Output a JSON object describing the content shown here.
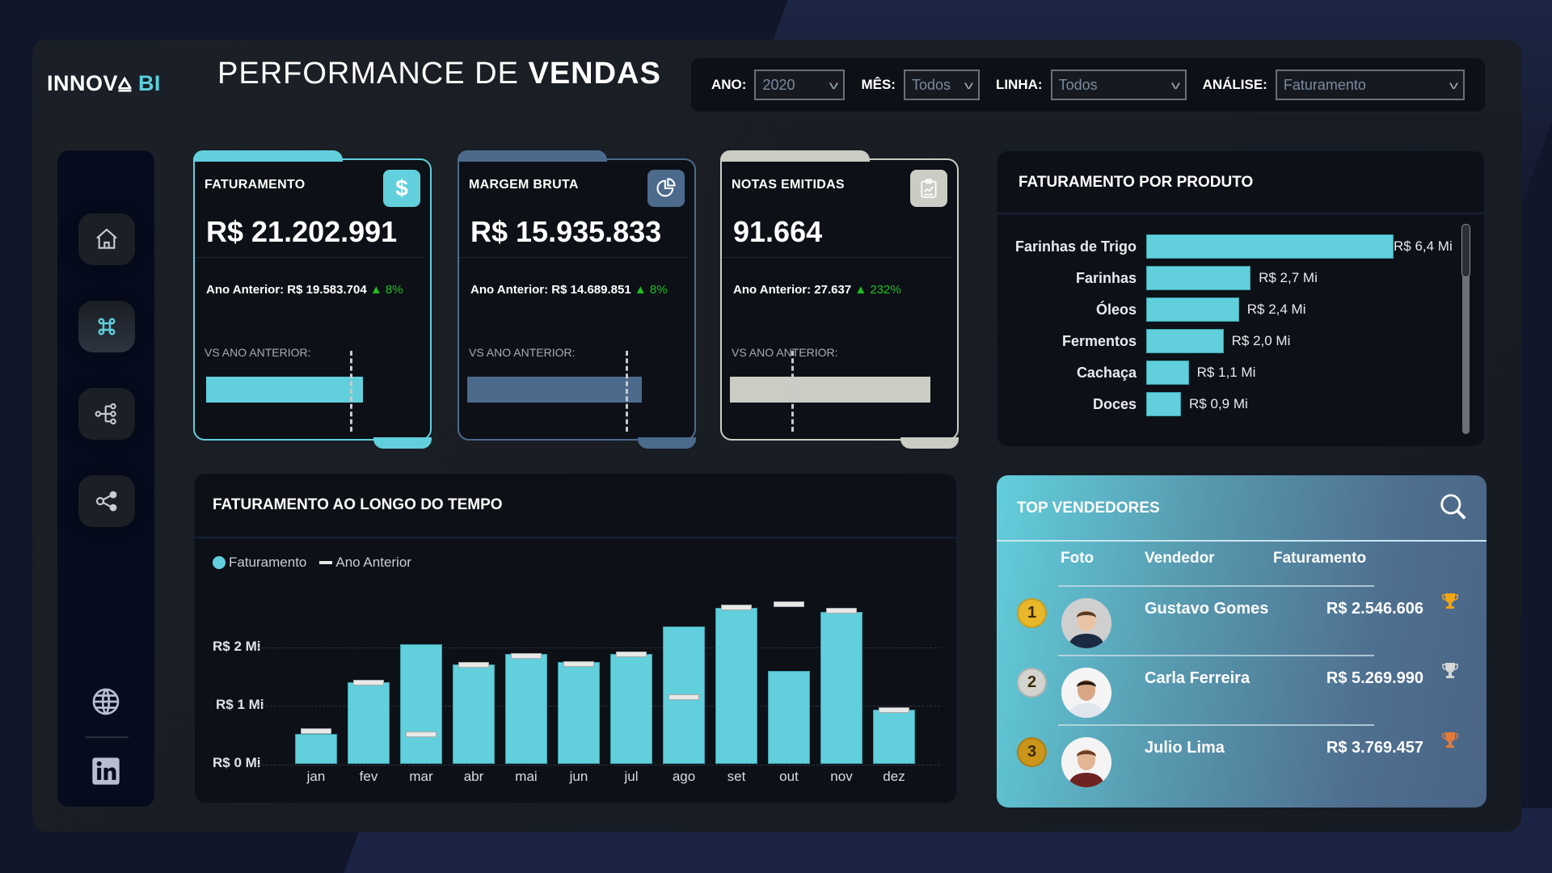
{
  "app": {
    "logo_main": "INNOV⩠ ",
    "logo_accent": "BI",
    "title_light": "PERFORMANCE DE ",
    "title_bold": "VENDAS"
  },
  "filters": [
    {
      "label": "ANO:",
      "value": "2020"
    },
    {
      "label": "MÊS:",
      "value": "Todos"
    },
    {
      "label": "LINHA:",
      "value": "Todos"
    },
    {
      "label": "ANÁLISE:",
      "value": "Faturamento"
    }
  ],
  "sidebar": {
    "items": [
      {
        "name": "home",
        "icon": "home-icon"
      },
      {
        "name": "command",
        "icon": "command-icon",
        "active": true
      },
      {
        "name": "hierarchy",
        "icon": "hierarchy-icon"
      },
      {
        "name": "share",
        "icon": "share-icon"
      }
    ],
    "bottom": [
      {
        "icon": "globe-icon"
      },
      {
        "icon": "linkedin-icon"
      }
    ]
  },
  "kpis": [
    {
      "label": "FATURAMENTO",
      "value": "R$ 21.202.991",
      "prev_label": "Ano Anterior: R$ 19.583.704",
      "delta": "▲ 8%",
      "vs_label": "VS ANO ANTERIOR:",
      "color": "#62cfdc",
      "icon": "dollar-icon"
    },
    {
      "label": "MARGEM BRUTA",
      "value": "R$ 15.935.833",
      "prev_label": "Ano Anterior: R$ 14.689.851",
      "delta": "▲ 8%",
      "vs_label": "VS ANO ANTERIOR:",
      "color": "#4c6a8c",
      "icon": "pie-chart-icon"
    },
    {
      "label": "NOTAS EMITIDAS",
      "value": "91.664",
      "prev_label": "Ano Anterior: 27.637",
      "delta": "▲ 232%",
      "vs_label": "VS ANO ANTERIOR:",
      "color": "#cbccc4",
      "icon": "clipboard-chart-icon"
    }
  ],
  "produto": {
    "title": "FATURAMENTO POR PRODUTO",
    "items": [
      {
        "name": "Farinhas de Trigo",
        "label": "R$ 6,4 Mi",
        "value": 6.4
      },
      {
        "name": "Farinhas",
        "label": "R$ 2,7 Mi",
        "value": 2.7
      },
      {
        "name": "Óleos",
        "label": "R$ 2,4 Mi",
        "value": 2.4
      },
      {
        "name": "Fermentos",
        "label": "R$ 2,0 Mi",
        "value": 2.0
      },
      {
        "name": "Cachaça",
        "label": "R$ 1,1 Mi",
        "value": 1.1
      },
      {
        "name": "Doces",
        "label": "R$ 0,9 Mi",
        "value": 0.9
      }
    ]
  },
  "tempo": {
    "title": "FATURAMENTO AO LONGO DO TEMPO",
    "legend": [
      "Faturamento",
      "Ano Anterior"
    ],
    "yticks": [
      "R$ 2 Mi",
      "R$ 1 Mi",
      "R$ 0 Mi"
    ]
  },
  "chart_data": [
    {
      "type": "bar",
      "title": "FATURAMENTO AO LONGO DO TEMPO",
      "categories": [
        "jan",
        "fev",
        "mar",
        "abr",
        "mai",
        "jun",
        "jul",
        "ago",
        "set",
        "out",
        "nov",
        "dez"
      ],
      "series": [
        {
          "name": "Faturamento",
          "values": [
            0.51,
            1.4,
            2.04,
            1.7,
            1.87,
            1.74,
            1.88,
            2.34,
            2.66,
            1.58,
            2.6,
            0.92
          ]
        },
        {
          "name": "Ano Anterior",
          "values": [
            0.57,
            1.39,
            0.51,
            1.7,
            1.85,
            1.71,
            1.88,
            1.15,
            2.68,
            2.73,
            2.62,
            0.92
          ]
        }
      ],
      "xlabel": "",
      "ylabel": "",
      "yticks": [
        "R$ 0 Mi",
        "R$ 1 Mi",
        "R$ 2 Mi"
      ],
      "ylim": [
        0,
        2.8
      ],
      "grid": true,
      "legend_position": "top-left",
      "unit": "R$ Mi"
    },
    {
      "type": "bar",
      "orientation": "horizontal",
      "title": "FATURAMENTO POR PRODUTO",
      "categories": [
        "Farinhas de Trigo",
        "Farinhas",
        "Óleos",
        "Fermentos",
        "Cachaça",
        "Doces"
      ],
      "values": [
        6.4,
        2.7,
        2.4,
        2.0,
        1.1,
        0.9
      ],
      "data_labels": [
        "R$ 6,4 Mi",
        "R$ 2,7 Mi",
        "R$ 2,4 Mi",
        "R$ 2,0 Mi",
        "R$ 1,1 Mi",
        "R$ 0,9 Mi"
      ],
      "unit": "R$ Mi"
    }
  ],
  "top": {
    "title": "TOP VENDEDORES",
    "headers": [
      "Foto",
      "Vendedor",
      "Faturamento"
    ],
    "rows": [
      {
        "rank": "1",
        "name": "Gustavo Gomes",
        "value": "R$ 2.546.606",
        "trophy": "gold",
        "rank_color": "#e9b82a"
      },
      {
        "rank": "2",
        "name": "Carla Ferreira",
        "value": "R$ 5.269.990",
        "trophy": "silver",
        "rank_color": "#d3d3d0"
      },
      {
        "rank": "3",
        "name": "Julio Lima",
        "value": "R$ 3.769.457",
        "trophy": "bronze",
        "rank_color": "#c9951a"
      }
    ]
  }
}
